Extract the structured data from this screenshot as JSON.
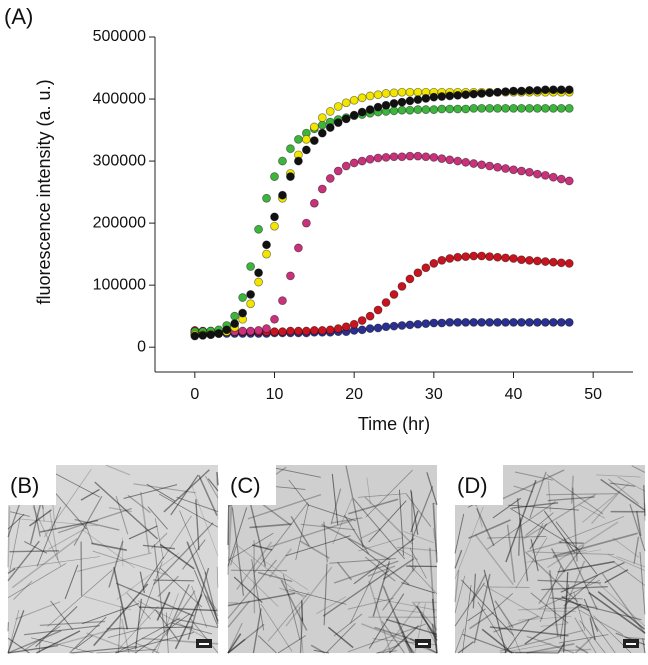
{
  "panel_label": "(A)",
  "chart_data": {
    "type": "scatter",
    "x_label": "Time (hr)",
    "y_label": "fluorescence intensity (a. u.)",
    "xlim": [
      -5,
      55
    ],
    "xticks": [
      0,
      10,
      20,
      30,
      40,
      50
    ],
    "ylim": [
      -40000,
      500000
    ],
    "yticks": [
      0,
      100000,
      200000,
      300000,
      400000,
      500000
    ],
    "x": [
      0,
      1,
      2,
      3,
      4,
      5,
      6,
      7,
      8,
      9,
      10,
      11,
      12,
      13,
      14,
      15,
      16,
      17,
      18,
      19,
      20,
      21,
      22,
      23,
      24,
      25,
      26,
      27,
      28,
      29,
      30,
      31,
      32,
      33,
      34,
      35,
      36,
      37,
      38,
      39,
      40,
      41,
      42,
      43,
      44,
      45,
      46,
      47
    ],
    "series": [
      {
        "color": "#2b2f8f",
        "values": [
          22000,
          22000,
          22000,
          22000,
          22000,
          22000,
          22000,
          22000,
          22000,
          22000,
          23000,
          23000,
          23000,
          23000,
          23000,
          24000,
          24000,
          24000,
          25000,
          25000,
          27000,
          28000,
          30000,
          31000,
          33000,
          34000,
          35000,
          36000,
          37000,
          38000,
          39000,
          39000,
          40000,
          40000,
          40000,
          40000,
          40000,
          40000,
          40000,
          40000,
          40000,
          40000,
          40000,
          40000,
          40000,
          40000,
          40000,
          40000
        ]
      },
      {
        "color": "#c8141e",
        "values": [
          27000,
          26000,
          26000,
          25000,
          25000,
          25000,
          25000,
          25000,
          25000,
          25000,
          25000,
          25000,
          26000,
          26000,
          26000,
          27000,
          27000,
          28000,
          30000,
          33000,
          37000,
          43000,
          50000,
          60000,
          72000,
          85000,
          98000,
          110000,
          120000,
          128000,
          135000,
          140000,
          143000,
          145000,
          146000,
          147000,
          147000,
          146000,
          145000,
          144000,
          143000,
          141000,
          140000,
          139000,
          138000,
          137000,
          136000,
          135000
        ]
      },
      {
        "color": "#c8327a",
        "values": [
          25000,
          25000,
          25000,
          25000,
          25000,
          25000,
          26000,
          26000,
          27000,
          30000,
          45000,
          75000,
          115000,
          160000,
          200000,
          232000,
          255000,
          272000,
          284000,
          292000,
          297000,
          300000,
          303000,
          305000,
          306000,
          307000,
          307000,
          308000,
          308000,
          307000,
          306000,
          304000,
          302000,
          300000,
          298000,
          296000,
          294000,
          292000,
          290000,
          288000,
          286000,
          284000,
          282000,
          279000,
          277000,
          274000,
          271000,
          268000
        ]
      },
      {
        "color": "#3db53d",
        "values": [
          25000,
          25000,
          26000,
          28000,
          35000,
          50000,
          80000,
          130000,
          190000,
          240000,
          275000,
          300000,
          320000,
          335000,
          345000,
          352000,
          358000,
          363000,
          367000,
          370000,
          373000,
          375000,
          377000,
          379000,
          380000,
          381000,
          382000,
          382000,
          383000,
          383000,
          383000,
          384000,
          384000,
          384000,
          384000,
          385000,
          385000,
          385000,
          385000,
          385000,
          385000,
          385000,
          385000,
          385000,
          385000,
          385000,
          385000,
          385000
        ]
      },
      {
        "color": "#f2e600",
        "values": [
          20000,
          20000,
          21000,
          22000,
          25000,
          32000,
          45000,
          70000,
          105000,
          150000,
          195000,
          240000,
          280000,
          310000,
          335000,
          355000,
          370000,
          380000,
          388000,
          394000,
          398000,
          402000,
          405000,
          407000,
          409000,
          410000,
          411000,
          411000,
          411000,
          411000,
          411000,
          411000,
          411000,
          411000,
          411000,
          411000,
          411000,
          411000,
          411000,
          411000,
          411000,
          411000,
          411000,
          411000,
          411000,
          411000,
          411000,
          411000
        ]
      },
      {
        "color": "#111111",
        "values": [
          18000,
          19000,
          20000,
          22000,
          28000,
          38000,
          55000,
          85000,
          120000,
          165000,
          210000,
          245000,
          275000,
          300000,
          318000,
          333000,
          345000,
          354000,
          362000,
          368000,
          374000,
          379000,
          383000,
          387000,
          390000,
          393000,
          395000,
          397000,
          399000,
          401000,
          403000,
          404000,
          405000,
          406000,
          407000,
          408000,
          409000,
          410000,
          411000,
          412000,
          413000,
          413000,
          414000,
          414000,
          415000,
          415000,
          415000,
          415000
        ]
      }
    ]
  },
  "images": [
    {
      "label": "(B)"
    },
    {
      "label": "(C)"
    },
    {
      "label": "(D)"
    }
  ]
}
